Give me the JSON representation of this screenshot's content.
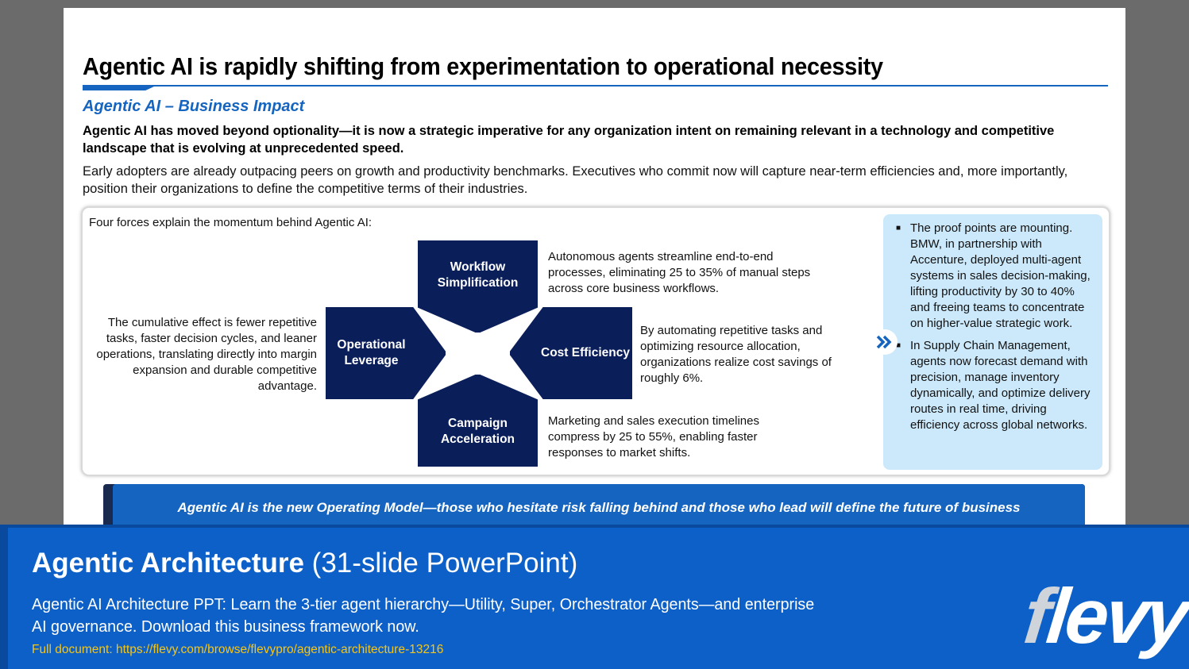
{
  "slide": {
    "title": "Agentic AI is rapidly shifting from experimentation to operational necessity",
    "subtitle": "Agentic AI – Business Impact",
    "lead": "Agentic AI has moved beyond optionality—it is now a strategic imperative for any organization intent on remaining relevant in a technology and competitive landscape that is evolving at unprecedented speed.",
    "body": "Early adopters are already outpacing peers on growth and productivity benchmarks. Executives who commit now will capture near-term efficiencies and, more importantly, position their organizations to define the competitive terms of their industries.",
    "panel": {
      "intro": "Four forces explain the momentum behind Agentic AI:",
      "forces": {
        "workflow": {
          "line1": "Workflow",
          "line2": "Simplification",
          "desc": "Autonomous agents streamline end-to-end processes, eliminating 25 to 35% of manual steps across core business workflows."
        },
        "operational": {
          "line1": "Operational",
          "line2": "Leverage",
          "desc": "The cumulative effect is fewer repetitive tasks, faster decision cycles, and leaner operations, translating directly into margin expansion and durable competitive advantage."
        },
        "cost": {
          "line1": "Cost Efficiency",
          "desc": "By automating repetitive tasks and optimizing resource allocation, organizations realize cost savings of roughly 6%."
        },
        "campaign": {
          "line1": "Campaign",
          "line2": "Acceleration",
          "desc": "Marketing and sales execution timelines compress by 25 to 55%, enabling faster responses to market shifts."
        }
      },
      "proof_points": [
        "The proof points are mounting. BMW, in partnership with Accenture, deployed multi-agent systems in sales decision-making, lifting productivity by 30 to 40% and freeing teams to concentrate on higher-value strategic work.",
        "In Supply Chain Management, agents now forecast demand with precision, manage inventory dynamically, and optimize delivery routes in real time, driving efficiency across global networks."
      ],
      "bullet_glyph": "■"
    },
    "banner": "Agentic AI is the new Operating Model—those who hesitate risk falling behind and those who lead will define the future of business"
  },
  "footer": {
    "title_strong": "Agentic Architecture",
    "title_light": " (31-slide PowerPoint)",
    "description": "Agentic AI Architecture PPT: Learn the 3-tier agent hierarchy—Utility, Super, Orchestrator Agents—and enterprise AI governance. Download this business framework now.",
    "link": "Full document: https://flevy.com/browse/flevypro/agentic-architecture-13216",
    "logo_f": "f",
    "logo_rest": "levy"
  },
  "colors": {
    "accent_blue": "#1565c0",
    "navy_box": "#0a1e5a",
    "proof_bg": "#cce9fb",
    "footer_bg": "#0d60c8",
    "link_yellow": "#f5c518"
  },
  "icons": {
    "chevron": "double-chevron-right-icon"
  }
}
